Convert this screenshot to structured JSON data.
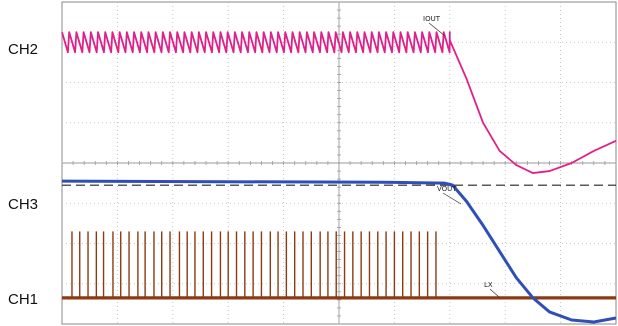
{
  "chart_data": {
    "type": "line",
    "title": "",
    "xlabel": "",
    "ylabel": "",
    "grid": true,
    "x": {
      "divisions": 10,
      "range": [
        0,
        10
      ]
    },
    "y": {
      "divisions": 8,
      "range": [
        0,
        8
      ]
    },
    "channel_labels": [
      "CH2",
      "CH3",
      "CH1"
    ],
    "series": [
      {
        "name": "IOUT",
        "channel": "CH2",
        "color": "#e0218a",
        "shape": "sawtooth",
        "sawtooth_period_div": 0.13,
        "sawtooth_low_div": 6.75,
        "sawtooth_high_div": 7.25,
        "sawtooth_end_div": 7.0,
        "points": [
          [
            7.0,
            7.05
          ],
          [
            7.3,
            6.1
          ],
          [
            7.6,
            5.0
          ],
          [
            7.9,
            4.3
          ],
          [
            8.2,
            3.95
          ],
          [
            8.5,
            3.75
          ],
          [
            8.8,
            3.8
          ],
          [
            9.2,
            4.0
          ],
          [
            9.6,
            4.3
          ],
          [
            10.0,
            4.55
          ]
        ]
      },
      {
        "name": "VOUT",
        "channel": "CH3",
        "color": "#2f4fb8",
        "points": [
          [
            0,
            3.55
          ],
          [
            6.0,
            3.52
          ],
          [
            6.9,
            3.5
          ],
          [
            7.05,
            3.45
          ],
          [
            7.3,
            3.05
          ],
          [
            7.6,
            2.45
          ],
          [
            7.9,
            1.8
          ],
          [
            8.2,
            1.15
          ],
          [
            8.5,
            0.65
          ],
          [
            8.8,
            0.3
          ],
          [
            9.2,
            0.1
          ],
          [
            9.6,
            0.05
          ],
          [
            10.0,
            0.15
          ]
        ]
      },
      {
        "name": "LX",
        "channel": "CH1",
        "color": "#8b3a12",
        "baseline_div": 0.65,
        "pulse_top_div": 2.3,
        "pulse_times_div": [
          0.18,
          0.32,
          0.47,
          0.62,
          0.75,
          0.92,
          1.06,
          1.21,
          1.37,
          1.5,
          1.66,
          1.8,
          1.95,
          2.12,
          2.26,
          2.4,
          2.55,
          2.7,
          2.86,
          3.0,
          3.15,
          3.3,
          3.45,
          3.6,
          3.76,
          3.9,
          4.05,
          4.2,
          4.35,
          4.5,
          4.66,
          4.8,
          4.95,
          5.1,
          5.25,
          5.4,
          5.55,
          5.7,
          5.85,
          6.0,
          6.15,
          6.3,
          6.45,
          6.6,
          6.75
        ]
      }
    ],
    "reference_line": {
      "y_div": 3.45,
      "style": "dashed"
    }
  }
}
